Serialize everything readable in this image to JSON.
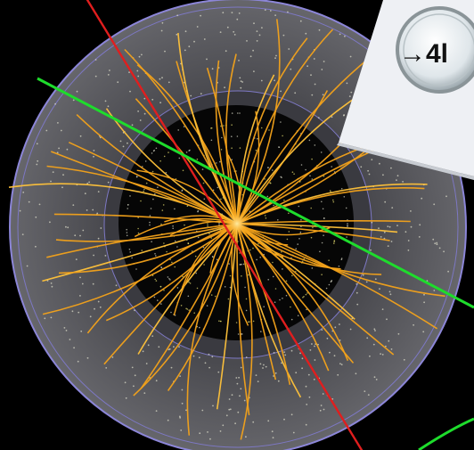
{
  "colors": {
    "background": "#000000",
    "outer_ring": "#5a5a5e",
    "outer_ring_edge": "#8c86d8",
    "inner_ring": "#3a3a40",
    "core": "#060606",
    "track": "#f3a21a",
    "track_bright": "#ffc23a",
    "red_track": "#e01e1e",
    "green_track": "#1edc2c",
    "hits": "#d9d9c8",
    "inset_bg": "#eef0f4"
  },
  "inset": {
    "text": "→4l",
    "icon": "magnifier-lens-icon"
  },
  "scene": {
    "description_icon": "particle-collision-event-display",
    "track_count": 58
  }
}
